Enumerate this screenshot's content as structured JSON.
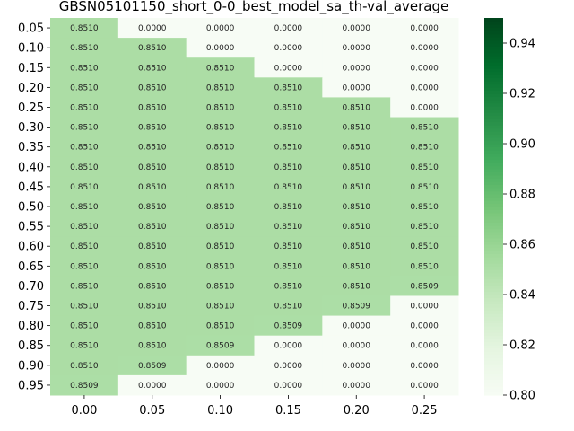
{
  "chart_data": {
    "type": "heatmap",
    "title": "GBSN05101150_short_0-0_best_model_sa_th-val_average",
    "xlabel": "",
    "ylabel": "",
    "x_categories": [
      "0.00",
      "0.05",
      "0.10",
      "0.15",
      "0.20",
      "0.25"
    ],
    "y_categories": [
      "0.05",
      "0.10",
      "0.15",
      "0.20",
      "0.25",
      "0.30",
      "0.35",
      "0.40",
      "0.45",
      "0.50",
      "0.55",
      "0.60",
      "0.65",
      "0.70",
      "0.75",
      "0.80",
      "0.85",
      "0.90",
      "0.95"
    ],
    "values": [
      [
        0.851,
        0.0,
        0.0,
        0.0,
        0.0,
        0.0
      ],
      [
        0.851,
        0.851,
        0.0,
        0.0,
        0.0,
        0.0
      ],
      [
        0.851,
        0.851,
        0.851,
        0.0,
        0.0,
        0.0
      ],
      [
        0.851,
        0.851,
        0.851,
        0.851,
        0.0,
        0.0
      ],
      [
        0.851,
        0.851,
        0.851,
        0.851,
        0.851,
        0.0
      ],
      [
        0.851,
        0.851,
        0.851,
        0.851,
        0.851,
        0.851
      ],
      [
        0.851,
        0.851,
        0.851,
        0.851,
        0.851,
        0.851
      ],
      [
        0.851,
        0.851,
        0.851,
        0.851,
        0.851,
        0.851
      ],
      [
        0.851,
        0.851,
        0.851,
        0.851,
        0.851,
        0.851
      ],
      [
        0.851,
        0.851,
        0.851,
        0.851,
        0.851,
        0.851
      ],
      [
        0.851,
        0.851,
        0.851,
        0.851,
        0.851,
        0.851
      ],
      [
        0.851,
        0.851,
        0.851,
        0.851,
        0.851,
        0.851
      ],
      [
        0.851,
        0.851,
        0.851,
        0.851,
        0.851,
        0.851
      ],
      [
        0.851,
        0.851,
        0.851,
        0.851,
        0.851,
        0.8509
      ],
      [
        0.851,
        0.851,
        0.851,
        0.851,
        0.8509,
        0.0
      ],
      [
        0.851,
        0.851,
        0.851,
        0.8509,
        0.0,
        0.0
      ],
      [
        0.851,
        0.851,
        0.8509,
        0.0,
        0.0,
        0.0
      ],
      [
        0.851,
        0.8509,
        0.0,
        0.0,
        0.0,
        0.0
      ],
      [
        0.8509,
        0.0,
        0.0,
        0.0,
        0.0,
        0.0
      ]
    ],
    "value_format_decimals": 4,
    "colormap": "Greens",
    "color_range": [
      0.8,
      0.95
    ],
    "colorbar_ticks": [
      0.8,
      0.82,
      0.84,
      0.86,
      0.88,
      0.9,
      0.92,
      0.94
    ],
    "colors": {
      "low": "#f7fcf5",
      "high": "#00441b",
      "mid_value_cell": "#addea7"
    },
    "grid": false,
    "legend": "colorbar-right"
  }
}
